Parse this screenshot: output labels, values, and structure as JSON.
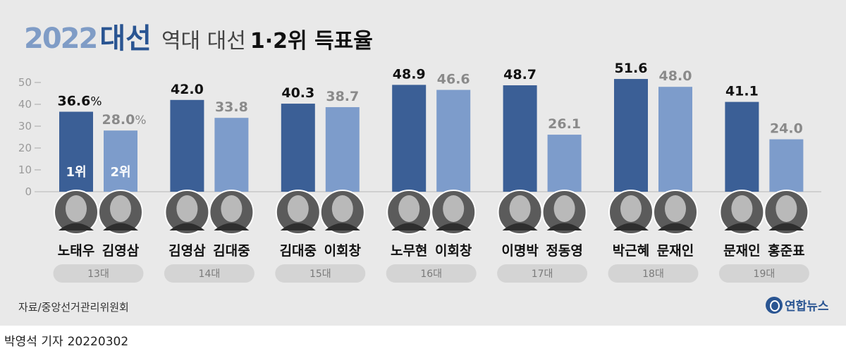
{
  "header": {
    "year": "2022",
    "name": "대선",
    "subtitle_light": "역대 대선",
    "subtitle_bold": "1·2위 득표율"
  },
  "source": "자료/중앙선거관리위원회",
  "logo": "연합뉴스",
  "byline": {
    "reporter": "박영석 기자",
    "date": "20220302"
  },
  "colors": {
    "first": "#3b5f96",
    "second": "#7d9ccb",
    "pill": "#d4d4d4",
    "background": "#e9e9e9"
  },
  "chart_data": {
    "type": "bar",
    "ylim": [
      0,
      50
    ],
    "yticks": [
      "0",
      "10",
      "20",
      "30",
      "40",
      "50"
    ],
    "percent_sign": "%",
    "rank_labels": [
      "1위",
      "2위"
    ],
    "elections": [
      {
        "label": "13대",
        "candidates": [
          {
            "name": "노태우",
            "value": 36.6,
            "value_label": "36.6"
          },
          {
            "name": "김영삼",
            "value": 28.0,
            "value_label": "28.0"
          }
        ]
      },
      {
        "label": "14대",
        "candidates": [
          {
            "name": "김영삼",
            "value": 42.0,
            "value_label": "42.0"
          },
          {
            "name": "김대중",
            "value": 33.8,
            "value_label": "33.8"
          }
        ]
      },
      {
        "label": "15대",
        "candidates": [
          {
            "name": "김대중",
            "value": 40.3,
            "value_label": "40.3"
          },
          {
            "name": "이회창",
            "value": 38.7,
            "value_label": "38.7"
          }
        ]
      },
      {
        "label": "16대",
        "candidates": [
          {
            "name": "노무현",
            "value": 48.9,
            "value_label": "48.9"
          },
          {
            "name": "이회창",
            "value": 46.6,
            "value_label": "46.6"
          }
        ]
      },
      {
        "label": "17대",
        "candidates": [
          {
            "name": "이명박",
            "value": 48.7,
            "value_label": "48.7"
          },
          {
            "name": "정동영",
            "value": 26.1,
            "value_label": "26.1"
          }
        ]
      },
      {
        "label": "18대",
        "candidates": [
          {
            "name": "박근혜",
            "value": 51.6,
            "value_label": "51.6"
          },
          {
            "name": "문재인",
            "value": 48.0,
            "value_label": "48.0"
          }
        ]
      },
      {
        "label": "19대",
        "candidates": [
          {
            "name": "문재인",
            "value": 41.1,
            "value_label": "41.1"
          },
          {
            "name": "홍준표",
            "value": 24.0,
            "value_label": "24.0"
          }
        ]
      }
    ]
  }
}
